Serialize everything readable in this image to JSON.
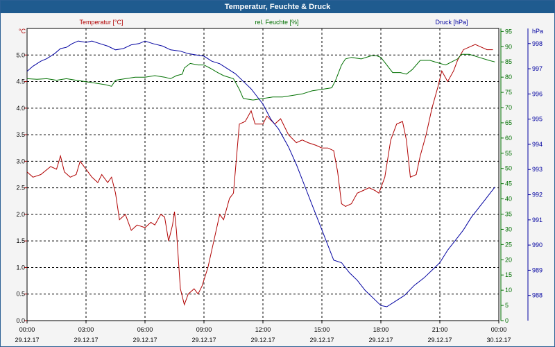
{
  "window": {
    "title": "Temperatur, Feuchte & Druck"
  },
  "colors": {
    "temperature": "#b00000",
    "humidity": "#007000",
    "pressure": "#0000a0",
    "grid": "#000000",
    "background": "#ffffff",
    "titlebar": "#1f5b8f"
  },
  "chart_data": {
    "type": "line",
    "grid": true,
    "x_ticks": [
      {
        "time": "00:00",
        "date": "29.12.17"
      },
      {
        "time": "03:00",
        "date": "29.12.17"
      },
      {
        "time": "06:00",
        "date": "29.12.17"
      },
      {
        "time": "09:00",
        "date": "29.12.17"
      },
      {
        "time": "12:00",
        "date": "29.12.17"
      },
      {
        "time": "15:00",
        "date": "29.12.17"
      },
      {
        "time": "18:00",
        "date": "29.12.17"
      },
      {
        "time": "21:00",
        "date": "29.12.17"
      },
      {
        "time": "00:00",
        "date": "30.12.17"
      }
    ],
    "x_range_hours": [
      0,
      24
    ],
    "axes": {
      "temperature": {
        "unit": "°C",
        "label": "Temperatur [°C]",
        "ylim": [
          0,
          5.5
        ],
        "ticks": [
          "0.0",
          "0.5",
          "1.0",
          "1.5",
          "2.0",
          "2.5",
          "3.0",
          "3.5",
          "4.0",
          "4.5",
          "5.0"
        ]
      },
      "humidity": {
        "unit": "%",
        "label": "rel. Feuchte [%]",
        "ylim": [
          0,
          96
        ],
        "ticks": [
          "0",
          "5",
          "10",
          "15",
          "20",
          "25",
          "30",
          "35",
          "40",
          "45",
          "50",
          "55",
          "60",
          "65",
          "70",
          "75",
          "80",
          "85",
          "90",
          "95"
        ]
      },
      "pressure": {
        "unit": "hPa",
        "label": "Druck [hPa]",
        "ylim": [
          987.0,
          998.6
        ],
        "ticks": [
          "988",
          "989",
          "990",
          "991",
          "992",
          "993",
          "994",
          "995",
          "996",
          "997",
          "998"
        ]
      }
    },
    "series": [
      {
        "name": "Temperatur [°C]",
        "axis": "temperature",
        "points": [
          [
            0,
            2.8
          ],
          [
            0.3,
            2.7
          ],
          [
            0.7,
            2.75
          ],
          [
            1.2,
            2.9
          ],
          [
            1.5,
            2.85
          ],
          [
            1.7,
            3.1
          ],
          [
            1.9,
            2.8
          ],
          [
            2.2,
            2.7
          ],
          [
            2.5,
            2.75
          ],
          [
            2.7,
            3.0
          ],
          [
            3.0,
            2.85
          ],
          [
            3.3,
            2.7
          ],
          [
            3.6,
            2.6
          ],
          [
            3.8,
            2.75
          ],
          [
            4.1,
            2.6
          ],
          [
            4.3,
            2.7
          ],
          [
            4.5,
            2.4
          ],
          [
            4.7,
            1.9
          ],
          [
            5.0,
            2.0
          ],
          [
            5.3,
            1.7
          ],
          [
            5.6,
            1.8
          ],
          [
            6.0,
            1.75
          ],
          [
            6.3,
            1.85
          ],
          [
            6.5,
            1.8
          ],
          [
            6.8,
            2.0
          ],
          [
            7.0,
            1.95
          ],
          [
            7.2,
            1.5
          ],
          [
            7.4,
            1.8
          ],
          [
            7.5,
            2.05
          ],
          [
            7.6,
            1.7
          ],
          [
            7.8,
            0.6
          ],
          [
            8.0,
            0.3
          ],
          [
            8.2,
            0.5
          ],
          [
            8.5,
            0.6
          ],
          [
            8.7,
            0.5
          ],
          [
            8.9,
            0.65
          ],
          [
            9.2,
            1.0
          ],
          [
            9.5,
            1.5
          ],
          [
            9.8,
            2.0
          ],
          [
            10.0,
            1.9
          ],
          [
            10.3,
            2.3
          ],
          [
            10.5,
            2.4
          ],
          [
            10.8,
            3.7
          ],
          [
            11.1,
            3.75
          ],
          [
            11.4,
            3.95
          ],
          [
            11.6,
            3.7
          ],
          [
            12.0,
            3.7
          ],
          [
            12.2,
            3.85
          ],
          [
            12.6,
            3.7
          ],
          [
            12.9,
            3.8
          ],
          [
            13.3,
            3.5
          ],
          [
            13.7,
            3.35
          ],
          [
            14.0,
            3.4
          ],
          [
            14.3,
            3.35
          ],
          [
            14.7,
            3.3
          ],
          [
            15.0,
            3.25
          ],
          [
            15.3,
            3.25
          ],
          [
            15.6,
            3.2
          ],
          [
            15.8,
            2.8
          ],
          [
            16.0,
            2.2
          ],
          [
            16.2,
            2.15
          ],
          [
            16.5,
            2.2
          ],
          [
            16.8,
            2.4
          ],
          [
            17.1,
            2.45
          ],
          [
            17.4,
            2.5
          ],
          [
            17.7,
            2.45
          ],
          [
            17.9,
            2.4
          ],
          [
            18.2,
            2.7
          ],
          [
            18.5,
            3.4
          ],
          [
            18.8,
            3.7
          ],
          [
            19.1,
            3.75
          ],
          [
            19.3,
            3.4
          ],
          [
            19.5,
            2.7
          ],
          [
            19.8,
            2.75
          ],
          [
            20.0,
            3.1
          ],
          [
            20.3,
            3.5
          ],
          [
            20.6,
            4.0
          ],
          [
            20.9,
            4.4
          ],
          [
            21.1,
            4.7
          ],
          [
            21.4,
            4.5
          ],
          [
            21.7,
            4.7
          ],
          [
            21.9,
            4.9
          ],
          [
            22.2,
            5.1
          ],
          [
            22.5,
            5.15
          ],
          [
            22.8,
            5.2
          ],
          [
            23.1,
            5.15
          ],
          [
            23.4,
            5.1
          ],
          [
            23.7,
            5.1
          ]
        ]
      },
      {
        "name": "rel. Feuchte [%]",
        "axis": "humidity",
        "points": [
          [
            0,
            79.5
          ],
          [
            0.5,
            79.3
          ],
          [
            1.0,
            79.5
          ],
          [
            1.5,
            79.0
          ],
          [
            2.0,
            79.5
          ],
          [
            2.5,
            79.0
          ],
          [
            3.0,
            78.5
          ],
          [
            3.5,
            78.0
          ],
          [
            4.0,
            77.5
          ],
          [
            4.3,
            77.0
          ],
          [
            4.5,
            79.0
          ],
          [
            5.0,
            79.5
          ],
          [
            5.5,
            80.0
          ],
          [
            6.0,
            80.0
          ],
          [
            6.5,
            80.5
          ],
          [
            7.0,
            80.0
          ],
          [
            7.3,
            79.5
          ],
          [
            7.6,
            80.5
          ],
          [
            7.9,
            81.0
          ],
          [
            8.0,
            83.0
          ],
          [
            8.3,
            84.5
          ],
          [
            8.7,
            84.0
          ],
          [
            9.0,
            84.0
          ],
          [
            9.3,
            83.0
          ],
          [
            9.7,
            81.5
          ],
          [
            10.0,
            80.5
          ],
          [
            10.5,
            79.5
          ],
          [
            10.8,
            76.0
          ],
          [
            11.0,
            73.0
          ],
          [
            11.5,
            72.5
          ],
          [
            12.0,
            73.0
          ],
          [
            12.5,
            73.5
          ],
          [
            13.0,
            73.5
          ],
          [
            13.5,
            74.0
          ],
          [
            14.0,
            74.5
          ],
          [
            14.5,
            75.5
          ],
          [
            15.0,
            76.0
          ],
          [
            15.5,
            76.5
          ],
          [
            15.7,
            79.0
          ],
          [
            16.0,
            84.0
          ],
          [
            16.2,
            86.0
          ],
          [
            16.5,
            86.5
          ],
          [
            17.0,
            86.0
          ],
          [
            17.5,
            87.0
          ],
          [
            17.8,
            87.0
          ],
          [
            18.0,
            86.5
          ],
          [
            18.3,
            84.0
          ],
          [
            18.6,
            81.5
          ],
          [
            19.0,
            81.5
          ],
          [
            19.3,
            81.0
          ],
          [
            19.6,
            82.5
          ],
          [
            20.0,
            85.5
          ],
          [
            20.5,
            85.5
          ],
          [
            21.0,
            84.5
          ],
          [
            21.3,
            84.0
          ],
          [
            21.6,
            85.0
          ],
          [
            21.9,
            86.0
          ],
          [
            22.1,
            87.5
          ],
          [
            22.5,
            87.5
          ],
          [
            23.0,
            86.5
          ],
          [
            23.5,
            85.5
          ],
          [
            23.8,
            85.0
          ]
        ]
      },
      {
        "name": "Druck [hPa]",
        "axis": "pressure",
        "points": [
          [
            0,
            996.9
          ],
          [
            0.3,
            997.1
          ],
          [
            0.7,
            997.3
          ],
          [
            1.0,
            997.4
          ],
          [
            1.4,
            997.6
          ],
          [
            1.7,
            997.8
          ],
          [
            2.0,
            997.85
          ],
          [
            2.3,
            998.0
          ],
          [
            2.6,
            998.1
          ],
          [
            3.0,
            998.05
          ],
          [
            3.3,
            998.1
          ],
          [
            3.7,
            998.0
          ],
          [
            4.1,
            997.9
          ],
          [
            4.5,
            997.75
          ],
          [
            4.9,
            997.8
          ],
          [
            5.3,
            997.95
          ],
          [
            5.7,
            998.0
          ],
          [
            6.0,
            998.1
          ],
          [
            6.4,
            998.0
          ],
          [
            6.9,
            997.9
          ],
          [
            7.3,
            997.75
          ],
          [
            7.8,
            997.7
          ],
          [
            8.2,
            997.6
          ],
          [
            8.6,
            997.55
          ],
          [
            9.0,
            997.5
          ],
          [
            9.4,
            997.3
          ],
          [
            9.8,
            997.2
          ],
          [
            10.2,
            997.0
          ],
          [
            10.6,
            996.8
          ],
          [
            11.0,
            996.5
          ],
          [
            11.4,
            996.2
          ],
          [
            11.7,
            995.9
          ],
          [
            12.0,
            995.6
          ],
          [
            12.4,
            995.0
          ],
          [
            12.8,
            994.6
          ],
          [
            13.3,
            993.9
          ],
          [
            13.7,
            993.2
          ],
          [
            14.1,
            992.4
          ],
          [
            14.5,
            991.6
          ],
          [
            14.9,
            990.8
          ],
          [
            15.3,
            990.0
          ],
          [
            15.6,
            989.4
          ],
          [
            16.0,
            989.3
          ],
          [
            16.4,
            988.9
          ],
          [
            16.8,
            988.6
          ],
          [
            17.2,
            988.2
          ],
          [
            17.6,
            987.9
          ],
          [
            18.0,
            987.6
          ],
          [
            18.3,
            987.55
          ],
          [
            18.7,
            987.75
          ],
          [
            19.2,
            988.0
          ],
          [
            19.7,
            988.4
          ],
          [
            20.2,
            988.7
          ],
          [
            20.6,
            989.0
          ],
          [
            21.0,
            989.3
          ],
          [
            21.4,
            989.8
          ],
          [
            21.8,
            990.2
          ],
          [
            22.2,
            990.6
          ],
          [
            22.6,
            991.1
          ],
          [
            23.0,
            991.5
          ],
          [
            23.4,
            991.9
          ],
          [
            23.8,
            992.3
          ]
        ]
      }
    ]
  }
}
